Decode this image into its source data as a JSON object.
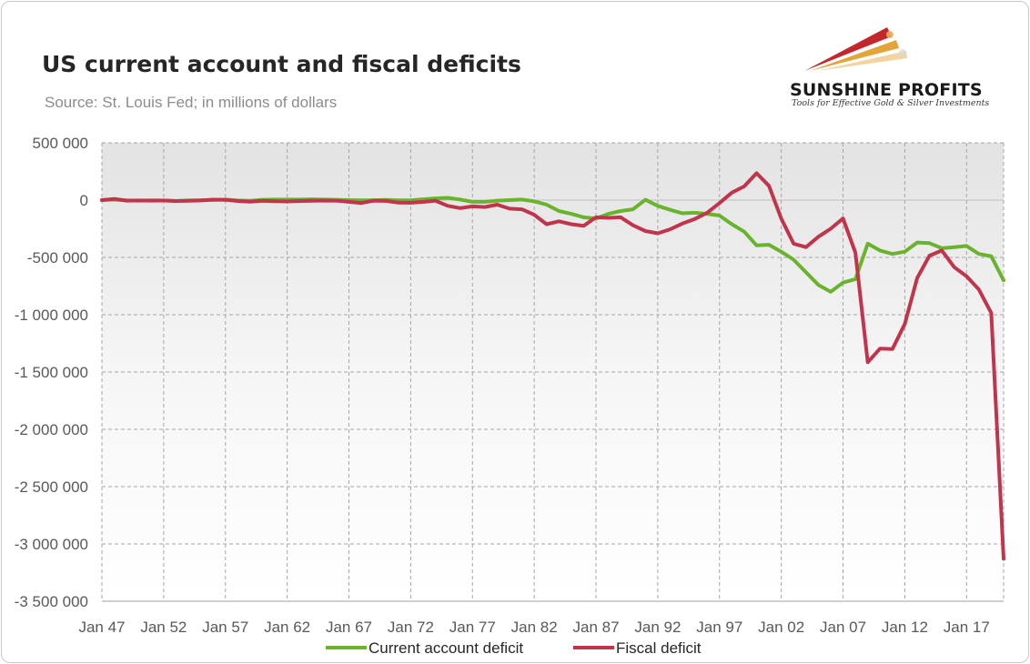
{
  "title": "US current account and fiscal deficits",
  "subtitle": "Source: St. Louis Fed; in millions of dollars",
  "logo": {
    "name": "SUNSHINE PROFITS",
    "tagline": "Tools for Effective Gold & Silver Investments"
  },
  "colors": {
    "current_account": "#6ab42d",
    "fiscal": "#c0354b",
    "grid": "#a6a6a6",
    "logo_red": "#c3272b",
    "logo_gold": "#e3a43a"
  },
  "chart_data": {
    "type": "line",
    "title": "US current account and fiscal deficits",
    "subtitle": "Source: St. Louis Fed; in millions of dollars",
    "x": [
      1947,
      1948,
      1949,
      1950,
      1951,
      1952,
      1953,
      1954,
      1955,
      1956,
      1957,
      1958,
      1959,
      1960,
      1961,
      1962,
      1963,
      1964,
      1965,
      1966,
      1967,
      1968,
      1969,
      1970,
      1971,
      1972,
      1973,
      1974,
      1975,
      1976,
      1977,
      1978,
      1979,
      1980,
      1981,
      1982,
      1983,
      1984,
      1985,
      1986,
      1987,
      1988,
      1989,
      1990,
      1991,
      1992,
      1993,
      1994,
      1995,
      1996,
      1997,
      1998,
      1999,
      2000,
      2001,
      2002,
      2003,
      2004,
      2005,
      2006,
      2007,
      2008,
      2009,
      2010,
      2011,
      2012,
      2013,
      2014,
      2015,
      2016,
      2017,
      2018,
      2019,
      2020
    ],
    "x_tick_labels": [
      "Jan 47",
      "Jan 52",
      "Jan 57",
      "Jan 62",
      "Jan 67",
      "Jan 72",
      "Jan 77",
      "Jan 82",
      "Jan 87",
      "Jan 92",
      "Jan 97",
      "Jan 02",
      "Jan 07",
      "Jan 12",
      "Jan 17"
    ],
    "x_tick_years": [
      1947,
      1952,
      1957,
      1962,
      1967,
      1972,
      1977,
      1982,
      1987,
      1992,
      1997,
      2002,
      2007,
      2012,
      2017
    ],
    "ylim": [
      -3500000,
      500000
    ],
    "y_ticks": [
      500000,
      0,
      -500000,
      -1000000,
      -1500000,
      -2000000,
      -2500000,
      -3000000,
      -3500000
    ],
    "y_tick_labels": [
      "500 000",
      "0",
      "-500 000",
      "-1 000 000",
      "-1 500 000",
      "-2 000 000",
      "-2 500 000",
      "-3 000 000",
      "-3 500 000"
    ],
    "grid": true,
    "legend_position": "bottom",
    "series": [
      {
        "name": "Current account deficit",
        "color": "#6ab42d",
        "values": [
          0,
          5000,
          -2000,
          -5000,
          -2000,
          -4000,
          -8000,
          -3000,
          -1000,
          2000,
          5000,
          -3000,
          -6000,
          3000,
          5000,
          5000,
          5000,
          7000,
          5000,
          3000,
          0,
          -2000,
          -1000,
          2000,
          -2000,
          -2000,
          7000,
          15000,
          20000,
          5000,
          -15000,
          -15000,
          -5000,
          0,
          5000,
          -10000,
          -40000,
          -95000,
          -120000,
          -150000,
          -160000,
          -120000,
          -95000,
          -80000,
          3000,
          -50000,
          -85000,
          -115000,
          -110000,
          -120000,
          -135000,
          -210000,
          -275000,
          -395000,
          -390000,
          -450000,
          -520000,
          -630000,
          -740000,
          -800000,
          -720000,
          -690000,
          -380000,
          -440000,
          -470000,
          -450000,
          -370000,
          -375000,
          -420000,
          -410000,
          -400000,
          -470000,
          -490000,
          -700000
        ]
      },
      {
        "name": "Fiscal deficit",
        "color": "#c0354b",
        "values": [
          0,
          10000,
          -5000,
          -3000,
          -5000,
          -3000,
          -8000,
          -6000,
          -3000,
          4000,
          2000,
          -8000,
          -14000,
          -6000,
          -10000,
          -12000,
          -8000,
          -6000,
          -4000,
          -5000,
          -15000,
          -25000,
          -5000,
          -7000,
          -22000,
          -23000,
          -16000,
          -5000,
          -50000,
          -70000,
          -55000,
          -60000,
          -40000,
          -75000,
          -80000,
          -128000,
          -210000,
          -185000,
          -210000,
          -225000,
          -150000,
          -155000,
          -150000,
          -220000,
          -270000,
          -290000,
          -255000,
          -205000,
          -165000,
          -110000,
          -25000,
          65000,
          120000,
          235000,
          125000,
          -160000,
          -380000,
          -410000,
          -320000,
          -250000,
          -160000,
          -458000,
          -1415000,
          -1295000,
          -1300000,
          -1080000,
          -680000,
          -485000,
          -440000,
          -585000,
          -665000,
          -780000,
          -985000,
          -3130000
        ]
      }
    ]
  }
}
